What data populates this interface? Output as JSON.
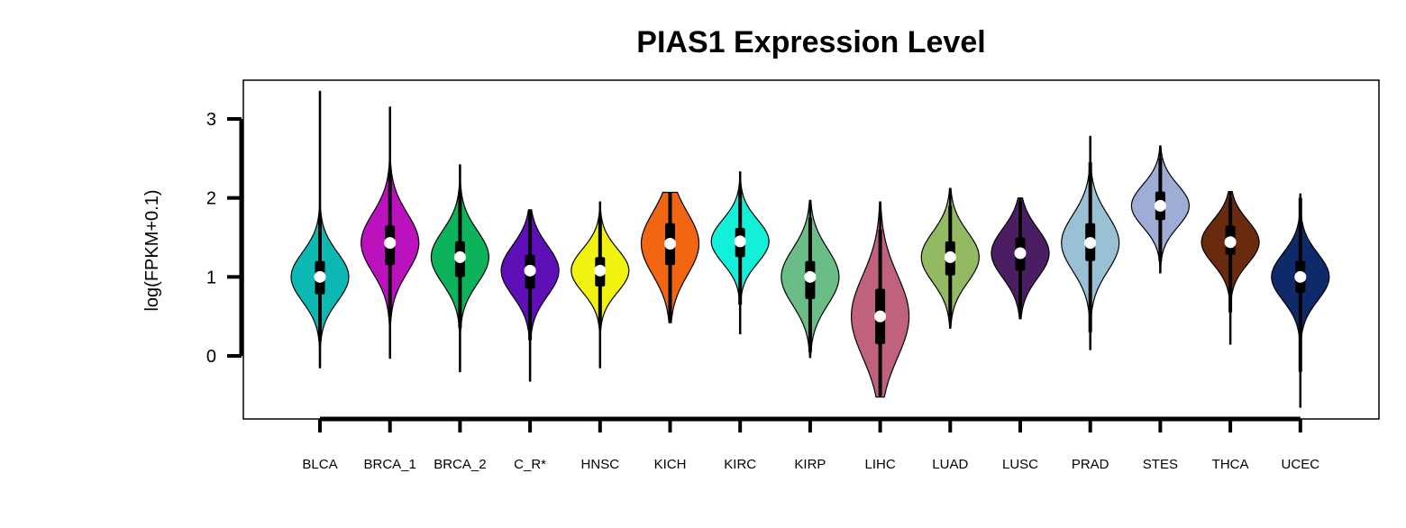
{
  "chart_data": {
    "type": "violin",
    "title": "PIAS1 Expression Level",
    "xlabel": "",
    "ylabel": "log(FPKM+0.1)",
    "ylim": [
      -0.8,
      3.5
    ],
    "yticks": [
      0,
      1,
      2,
      3
    ],
    "grid": false,
    "legend": "none",
    "categories": [
      "BLCA",
      "BRCA_1",
      "BRCA_2",
      "C_R*",
      "HNSC",
      "KICH",
      "KIRC",
      "KIRP",
      "LIHC",
      "LUAD",
      "LUSC",
      "PRAD",
      "STES",
      "THCA",
      "UCEC"
    ],
    "series": [
      {
        "category": "BLCA",
        "color": "#0BB8B4",
        "min": -0.15,
        "max": 3.35,
        "q1": 0.78,
        "median": 1.0,
        "q3": 1.2,
        "whisker_low": 0.2,
        "whisker_high": 1.75
      },
      {
        "category": "BRCA_1",
        "color": "#BB12BE",
        "min": -0.03,
        "max": 3.15,
        "q1": 1.15,
        "median": 1.43,
        "q3": 1.65,
        "whisker_low": 0.5,
        "whisker_high": 2.3
      },
      {
        "category": "BRCA_2",
        "color": "#0CB35A",
        "min": -0.2,
        "max": 2.42,
        "q1": 1.0,
        "median": 1.25,
        "q3": 1.45,
        "whisker_low": 0.35,
        "whisker_high": 2.1
      },
      {
        "category": "C_R*",
        "color": "#5E0FB8",
        "min": -0.32,
        "max": 1.85,
        "q1": 0.85,
        "median": 1.08,
        "q3": 1.28,
        "whisker_low": 0.2,
        "whisker_high": 1.85
      },
      {
        "category": "HNSC",
        "color": "#F1F210",
        "min": -0.15,
        "max": 1.95,
        "q1": 0.88,
        "median": 1.08,
        "q3": 1.25,
        "whisker_low": 0.4,
        "whisker_high": 1.75
      },
      {
        "category": "KICH",
        "color": "#F26513",
        "min": 0.42,
        "max": 2.07,
        "q1": 1.15,
        "median": 1.42,
        "q3": 1.68,
        "whisker_low": 0.42,
        "whisker_high": 2.07
      },
      {
        "category": "KIRC",
        "color": "#12F0D9",
        "min": 0.28,
        "max": 2.33,
        "q1": 1.25,
        "median": 1.45,
        "q3": 1.62,
        "whisker_low": 0.65,
        "whisker_high": 2.1
      },
      {
        "category": "KIRP",
        "color": "#6ABD87",
        "min": -0.02,
        "max": 1.97,
        "q1": 0.72,
        "median": 1.0,
        "q3": 1.2,
        "whisker_low": 0.05,
        "whisker_high": 1.75
      },
      {
        "category": "LIHC",
        "color": "#C0627E",
        "min": -0.52,
        "max": 1.95,
        "q1": 0.15,
        "median": 0.5,
        "q3": 0.85,
        "whisker_low": -0.5,
        "whisker_high": 1.6
      },
      {
        "category": "LUAD",
        "color": "#93BA62",
        "min": 0.35,
        "max": 2.12,
        "q1": 1.02,
        "median": 1.25,
        "q3": 1.45,
        "whisker_low": 0.5,
        "whisker_high": 1.9
      },
      {
        "category": "LUSC",
        "color": "#4B1E63",
        "min": 0.47,
        "max": 2.0,
        "q1": 1.08,
        "median": 1.3,
        "q3": 1.5,
        "whisker_low": 0.6,
        "whisker_high": 1.95
      },
      {
        "category": "PRAD",
        "color": "#99C1D3",
        "min": 0.08,
        "max": 2.78,
        "q1": 1.2,
        "median": 1.43,
        "q3": 1.68,
        "whisker_low": 0.3,
        "whisker_high": 2.45
      },
      {
        "category": "STES",
        "color": "#9FACD5",
        "min": 1.05,
        "max": 2.66,
        "q1": 1.72,
        "median": 1.9,
        "q3": 2.08,
        "whisker_low": 1.2,
        "whisker_high": 2.5
      },
      {
        "category": "THCA",
        "color": "#6A2A0E",
        "min": 0.15,
        "max": 2.08,
        "q1": 1.28,
        "median": 1.44,
        "q3": 1.65,
        "whisker_low": 0.55,
        "whisker_high": 2.0
      },
      {
        "category": "UCEC",
        "color": "#0E2A6A",
        "min": -0.65,
        "max": 2.05,
        "q1": 0.8,
        "median": 1.0,
        "q3": 1.2,
        "whisker_low": -0.2,
        "whisker_high": 2.0
      }
    ]
  }
}
